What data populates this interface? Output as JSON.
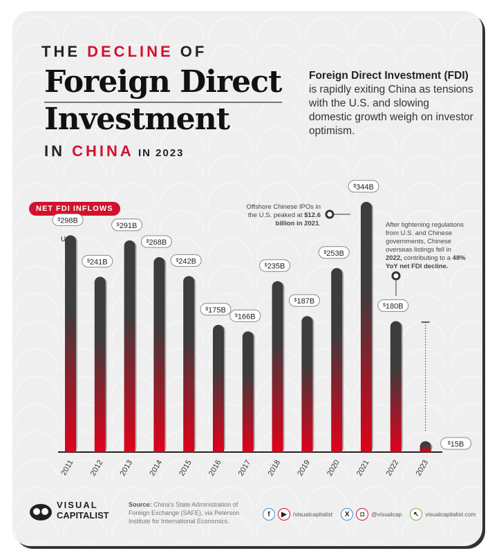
{
  "title": {
    "line1_pre": "THE ",
    "line1_accent": "DECLINE",
    "line1_post": " OF",
    "line2": "Foreign Direct",
    "line3": "Investment",
    "line4_pre": "IN ",
    "line4_accent": "CHINA",
    "line4_post": " IN 2023"
  },
  "description": {
    "bold": "Foreign Direct Investment (FDI)",
    "rest": " is rapidly exiting China as tensions with the U.S. and slowing domestic growth weigh on investor optimism."
  },
  "colors": {
    "accent": "#d1122f",
    "bar_top": "#3d3d3d",
    "bar_bottom": "#e0001a"
  },
  "chart_data": {
    "type": "bar",
    "series_label": "NET FDI INFLOWS",
    "unit": "USD",
    "categories": [
      "2011",
      "2012",
      "2013",
      "2014",
      "2015",
      "2016",
      "2017",
      "2018",
      "2019",
      "2020",
      "2021",
      "2022",
      "2023"
    ],
    "values": [
      298,
      241,
      291,
      268,
      242,
      175,
      166,
      235,
      187,
      253,
      344,
      180,
      15
    ],
    "data_labels": [
      "298B",
      "241B",
      "291B",
      "268B",
      "242B",
      "175B",
      "166B",
      "235B",
      "187B",
      "253B",
      "344B",
      "180B",
      "15B"
    ],
    "currency_symbol": "$",
    "ylim": [
      0,
      344
    ],
    "grid": false,
    "annotations": [
      {
        "text_plain": "Offshore Chinese IPOs in the U.S. peaked at ",
        "text_bold": "$12.6 billion in 2021",
        "text_end": ".",
        "category": "2021"
      },
      {
        "text_plain1": "After tightening regulations from U.S. and Chinese governments, Chinese overseas listings fell in ",
        "text_bold1": "2022,",
        "text_plain2": " contributing to a ",
        "text_bold2": "48% YoY net FDI decline.",
        "category": "2022"
      }
    ]
  },
  "footer": {
    "logo_line1": "VISUAL",
    "logo_line2": "CAPITALIST",
    "source_label": "Source:",
    "source_text": " China's State Administration of Foreign Exchange (SAFE), via Peterson Institute for International Economics.",
    "social1": "/visualcapitalist",
    "social2": "@visualcap",
    "website": "visualcapitalist.com"
  }
}
